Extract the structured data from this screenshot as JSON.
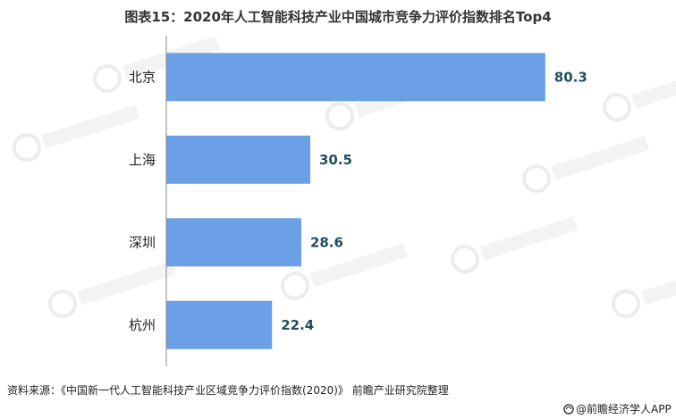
{
  "colors": {
    "bar": "#6b9fe6",
    "value_text": "#1f4e5f",
    "axis": "#888888"
  },
  "chart_data": {
    "type": "bar",
    "orientation": "horizontal",
    "title": "图表15：2020年人工智能科技产业中国城市竞争力评价指数排名Top4",
    "categories": [
      "北京",
      "上海",
      "深圳",
      "杭州"
    ],
    "values": [
      80.3,
      30.5,
      28.6,
      22.4
    ],
    "xlim": [
      0,
      90
    ],
    "grid": false,
    "data_labels": true
  },
  "footer": {
    "source": "资料来源：《中国新一代人工智能科技产业区域竞争力评价指数(2020)》 前瞻产业研究院整理",
    "brand": "@前瞻经济学人APP"
  }
}
